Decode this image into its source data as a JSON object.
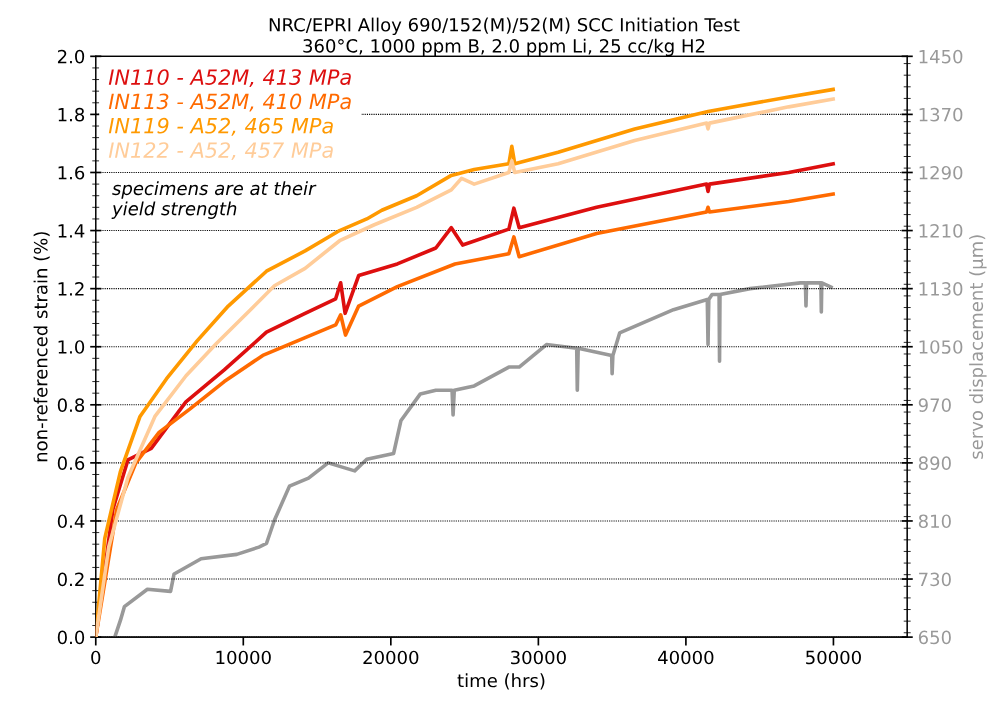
{
  "chart_data": {
    "type": "line",
    "title": "NRC/EPRI Alloy 690/152(M)/52(M) SCC Initiation Test",
    "subtitle": "360°C, 1000 ppm B, 2.0 ppm Li, 25 cc/kg H2",
    "xlabel": "time (hrs)",
    "ylabel": "non-referenced strain (%)",
    "y2label": "servo displacement (µm)",
    "xlim": [
      0,
      55000
    ],
    "xticks": [
      0,
      10000,
      20000,
      30000,
      40000,
      50000
    ],
    "ylim": [
      0,
      2.0
    ],
    "yticks": [
      {
        "value": 0,
        "label": "0.0"
      },
      {
        "value": 0.2,
        "label": "0.2"
      },
      {
        "value": 0.4,
        "label": "0.4"
      },
      {
        "value": 0.6,
        "label": "0.6"
      },
      {
        "value": 0.8,
        "label": "0.8"
      },
      {
        "value": 1.0,
        "label": "1.0"
      },
      {
        "value": 1.2,
        "label": "1.2"
      },
      {
        "value": 1.4,
        "label": "1.4"
      },
      {
        "value": 1.6,
        "label": "1.6"
      },
      {
        "value": 1.8,
        "label": "1.8"
      },
      {
        "value": 2.0,
        "label": "2.0"
      }
    ],
    "y2lim": [
      650,
      1450
    ],
    "y2ticks": [
      650,
      730,
      810,
      890,
      970,
      1050,
      1130,
      1210,
      1290,
      1370,
      1450
    ],
    "grid": "y",
    "legend": "top left",
    "marker": "none",
    "line_style": "solid",
    "annotations": [
      "specimens are at their\nyield strength"
    ],
    "series": [
      {
        "name": "IN110 - A52M, 413 MPa",
        "color": "#dd0f0f",
        "x": [
          0,
          1160,
          2180,
          3760,
          6110,
          8710,
          11570,
          14190,
          16260,
          16600,
          16900,
          17820,
          20440,
          23050,
          24100,
          24870,
          28000,
          28340,
          28700,
          33950,
          41400,
          41500,
          41600,
          46970,
          49980
        ],
        "values": [
          0,
          0.44,
          0.61,
          0.65,
          0.81,
          0.92,
          1.05,
          1.115,
          1.165,
          1.22,
          1.115,
          1.245,
          1.285,
          1.34,
          1.41,
          1.35,
          1.405,
          1.477,
          1.41,
          1.48,
          1.56,
          1.535,
          1.56,
          1.6,
          1.63
        ]
      },
      {
        "name": "IN113 - A52M, 410 MPa",
        "color": "#ff6a00",
        "x": [
          0,
          1420,
          2720,
          4290,
          6370,
          8710,
          11320,
          13670,
          16260,
          16600,
          16930,
          17820,
          20440,
          24350,
          28000,
          28340,
          28700,
          33950,
          41400,
          41500,
          41600,
          46970,
          49980
        ],
        "values": [
          0,
          0.44,
          0.6,
          0.705,
          0.785,
          0.88,
          0.97,
          1.02,
          1.075,
          1.11,
          1.04,
          1.14,
          1.207,
          1.285,
          1.32,
          1.378,
          1.31,
          1.39,
          1.464,
          1.48,
          1.464,
          1.5,
          1.526
        ]
      },
      {
        "name": "IN119 - A52, 465 MPa",
        "color": "#ff9900",
        "x": [
          0,
          610,
          1670,
          3000,
          4800,
          6870,
          8980,
          11570,
          14190,
          16530,
          18370,
          19390,
          21750,
          24100,
          25650,
          28000,
          28200,
          28400,
          31340,
          36530,
          41500,
          46970,
          49980
        ],
        "values": [
          0,
          0.34,
          0.57,
          0.76,
          0.89,
          1.02,
          1.14,
          1.26,
          1.33,
          1.4,
          1.44,
          1.47,
          1.52,
          1.59,
          1.61,
          1.63,
          1.69,
          1.63,
          1.67,
          1.75,
          1.81,
          1.86,
          1.886
        ]
      },
      {
        "name": "IN122 - A52, 457 MPa",
        "color": "#ffcc99",
        "x": [
          0,
          880,
          2180,
          4010,
          6120,
          8160,
          10540,
          12110,
          14190,
          16530,
          18880,
          21750,
          24100,
          24800,
          25650,
          28000,
          28200,
          28400,
          31340,
          36530,
          41400,
          41500,
          41600,
          46970,
          49980
        ],
        "values": [
          0,
          0.31,
          0.55,
          0.76,
          0.9,
          1.01,
          1.13,
          1.21,
          1.27,
          1.365,
          1.42,
          1.48,
          1.54,
          1.58,
          1.56,
          1.6,
          1.64,
          1.6,
          1.63,
          1.71,
          1.77,
          1.75,
          1.77,
          1.826,
          1.853
        ]
      },
      {
        "color": "#999999",
        "axis": "y2",
        "x": [
          1290,
          1670,
          1940,
          3500,
          5070,
          5310,
          7140,
          9560,
          11060,
          11570,
          12110,
          13130,
          14420,
          15750,
          17550,
          18370,
          20190,
          20680,
          22000,
          23050,
          24150,
          24220,
          24300,
          25650,
          28000,
          28700,
          30550,
          32600,
          32640,
          32700,
          34970,
          35000,
          35050,
          35510,
          39160,
          41450,
          41500,
          41550,
          41770,
          42250,
          42280,
          42310,
          44350,
          47760,
          48100,
          48140,
          48180,
          49150,
          49180,
          49210,
          49840
        ],
        "values": [
          650,
          673,
          692,
          716,
          713,
          737,
          758,
          764,
          774,
          779,
          811,
          858,
          869,
          890,
          879,
          895,
          903,
          948,
          985,
          990,
          990,
          956,
          990,
          996,
          1022,
          1022,
          1053,
          1048,
          990,
          1048,
          1038,
          1013,
          1038,
          1069,
          1101,
          1115,
          1053,
          1115,
          1122,
          1122,
          1030,
          1122,
          1130,
          1138,
          1138,
          1106,
          1138,
          1138,
          1098,
          1138,
          1132
        ]
      }
    ]
  }
}
